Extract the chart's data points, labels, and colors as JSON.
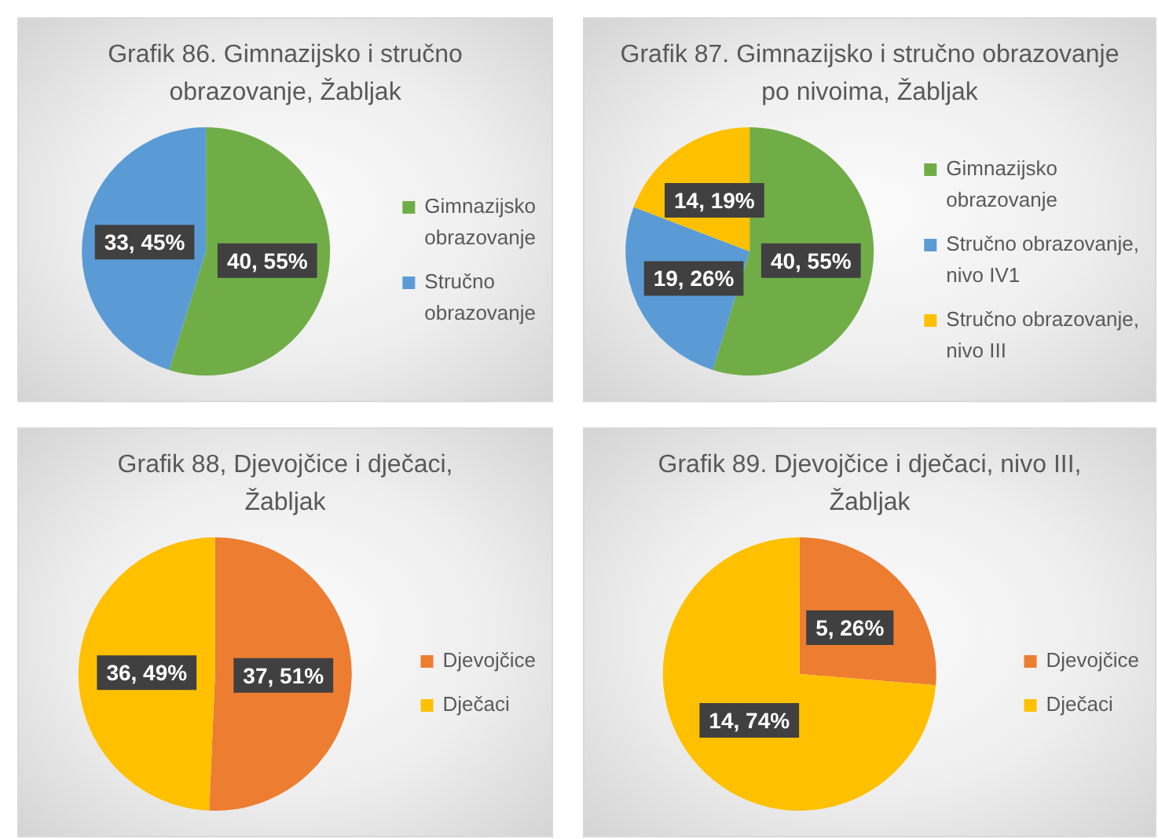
{
  "chart_data": [
    {
      "type": "pie",
      "title": "Grafik 86. Gimnazijsko i stručno obrazovanje, Žabljak",
      "categories": [
        "Gimnazijsko obrazovanje",
        "Stručno obrazovanje"
      ],
      "values": [
        40,
        33
      ],
      "colors": [
        "#70ad47",
        "#5b9bd5"
      ],
      "value_labels": [
        "40, 55%",
        "33, 45%"
      ],
      "legend": "right"
    },
    {
      "type": "pie",
      "title": "Grafik 87. Gimnazijsko i stručno obrazovanje po nivoima, Žabljak",
      "categories": [
        "Gimnazijsko obrazovanje",
        "Stručno obrazovanje, nivo IV1",
        "Stručno obrazovanje, nivo III"
      ],
      "values": [
        40,
        19,
        14
      ],
      "colors": [
        "#70ad47",
        "#5b9bd5",
        "#ffc000"
      ],
      "value_labels": [
        "40, 55%",
        "19, 26%",
        "14, 19%"
      ],
      "legend": "right"
    },
    {
      "type": "pie",
      "title": "Grafik 88, Djevojčice i dječaci, Žabljak",
      "categories": [
        "Djevojčice",
        "Dječaci"
      ],
      "values": [
        37,
        36
      ],
      "colors": [
        "#ed7d31",
        "#ffc000"
      ],
      "value_labels": [
        "37, 51%",
        "36, 49%"
      ],
      "legend": "right"
    },
    {
      "type": "pie",
      "title": "Grafik 89. Djevojčice i dječaci, nivo III, Žabljak",
      "categories": [
        "Djevojčice",
        "Dječaci"
      ],
      "values": [
        5,
        14
      ],
      "colors": [
        "#ed7d31",
        "#ffc000"
      ],
      "value_labels": [
        "5, 26%",
        "14, 74%"
      ],
      "legend": "right"
    }
  ]
}
